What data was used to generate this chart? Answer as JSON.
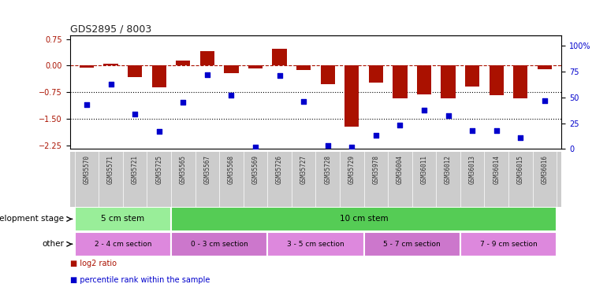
{
  "title": "GDS2895 / 8003",
  "samples": [
    "GSM35570",
    "GSM35571",
    "GSM35721",
    "GSM35725",
    "GSM35565",
    "GSM35567",
    "GSM35568",
    "GSM35569",
    "GSM35726",
    "GSM35727",
    "GSM35728",
    "GSM35729",
    "GSM35978",
    "GSM36004",
    "GSM36011",
    "GSM36012",
    "GSM36013",
    "GSM36014",
    "GSM36015",
    "GSM36016"
  ],
  "log2_ratio": [
    -0.05,
    0.06,
    -0.32,
    -0.62,
    0.13,
    0.4,
    -0.22,
    -0.08,
    0.48,
    -0.12,
    -0.52,
    -1.72,
    -0.48,
    -0.92,
    -0.82,
    -0.93,
    -0.58,
    -0.83,
    -0.92,
    -0.1
  ],
  "percentile": [
    43,
    63,
    34,
    17,
    45,
    72,
    52,
    2,
    71,
    46,
    3,
    2,
    13,
    23,
    38,
    32,
    18,
    18,
    11,
    47
  ],
  "bar_color": "#aa1100",
  "dot_color": "#0000cc",
  "ylim_left": [
    -2.35,
    0.85
  ],
  "yticks_left": [
    0.75,
    0.0,
    -0.75,
    -1.5,
    -2.25
  ],
  "ylim_right": [
    0,
    110
  ],
  "yticks_right": [
    100,
    75,
    50,
    25,
    0
  ],
  "yticklabels_right": [
    "100%",
    "75",
    "50",
    "25",
    "0"
  ],
  "hline_y": 0.0,
  "dotted_lines": [
    -0.75,
    -1.5
  ],
  "dev_stage_groups": [
    {
      "label": "5 cm stem",
      "start": 0,
      "end": 4,
      "color": "#99ee99"
    },
    {
      "label": "10 cm stem",
      "start": 4,
      "end": 20,
      "color": "#55cc55"
    }
  ],
  "other_groups": [
    {
      "label": "2 - 4 cm section",
      "start": 0,
      "end": 4,
      "color": "#dd88dd"
    },
    {
      "label": "0 - 3 cm section",
      "start": 4,
      "end": 8,
      "color": "#cc77cc"
    },
    {
      "label": "3 - 5 cm section",
      "start": 8,
      "end": 12,
      "color": "#dd88dd"
    },
    {
      "label": "5 - 7 cm section",
      "start": 12,
      "end": 16,
      "color": "#cc77cc"
    },
    {
      "label": "7 - 9 cm section",
      "start": 16,
      "end": 20,
      "color": "#dd88dd"
    }
  ],
  "xlabel_dev": "development stage",
  "xlabel_other": "other",
  "legend_items": [
    {
      "label": "log2 ratio",
      "color": "#aa1100"
    },
    {
      "label": "percentile rank within the sample",
      "color": "#0000cc"
    }
  ],
  "background_color": "#ffffff",
  "plot_bg": "#ffffff",
  "tick_label_bg": "#cccccc"
}
